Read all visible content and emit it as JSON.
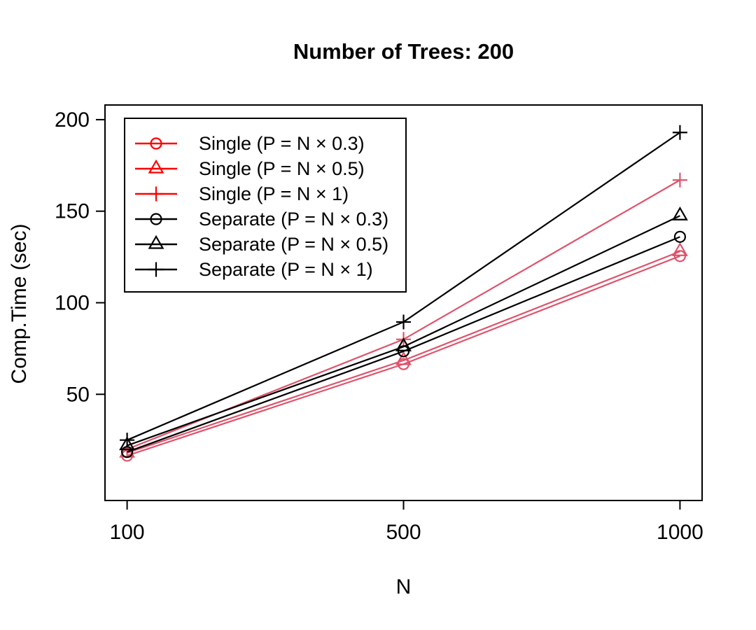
{
  "chart_data": {
    "type": "line",
    "title": "Number of Trees: 200",
    "xlabel": "N",
    "ylabel": "Comp.Time (sec)",
    "x_tick_labels": [
      "100",
      "500",
      "1000"
    ],
    "x_values": [
      100,
      500,
      1000
    ],
    "x_spacing": "equidistant-categories",
    "y_ticks": [
      50,
      100,
      150,
      200
    ],
    "ylim": [
      0,
      200
    ],
    "axis_pad_frac": 0.04,
    "grid": false,
    "legend_position": "top-left",
    "colors": {
      "single_series": "#DF536B",
      "single_legend": "#FF0000",
      "separate": "#000000"
    },
    "series": [
      {
        "name": "Single (P = N × 0.3)",
        "marker": "circle",
        "color": "#DF536B",
        "legend_color": "#FF0000",
        "values": [
          16.5,
          66.5,
          125.5
        ]
      },
      {
        "name": "Single (P = N × 0.5)",
        "marker": "triangle",
        "color": "#DF536B",
        "legend_color": "#FF0000",
        "values": [
          18,
          68.5,
          128
        ]
      },
      {
        "name": "Single (P = N × 1)",
        "marker": "plus",
        "color": "#DF536B",
        "legend_color": "#FF0000",
        "values": [
          20,
          80,
          167
        ]
      },
      {
        "name": "Separate (P = N × 0.3)",
        "marker": "circle",
        "color": "#000000",
        "legend_color": "#000000",
        "values": [
          18.5,
          73.5,
          136
        ]
      },
      {
        "name": "Separate (P = N × 0.5)",
        "marker": "triangle",
        "color": "#000000",
        "legend_color": "#000000",
        "values": [
          22,
          76,
          147.5
        ]
      },
      {
        "name": "Separate (P = N × 1)",
        "marker": "plus",
        "color": "#000000",
        "legend_color": "#000000",
        "values": [
          25,
          89.5,
          193
        ]
      }
    ]
  }
}
